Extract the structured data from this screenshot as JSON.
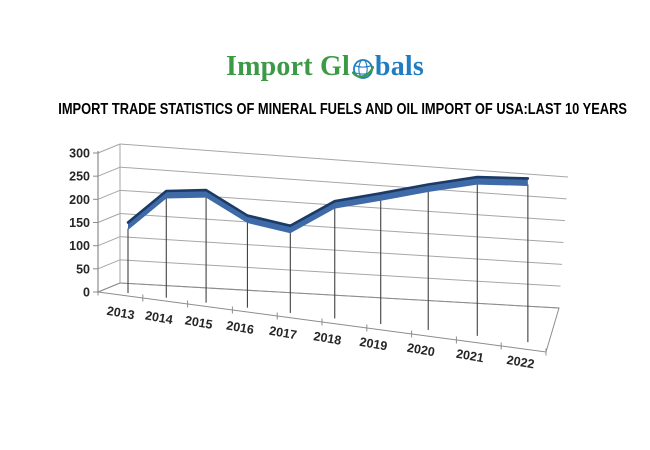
{
  "logo": {
    "text_left": "Import Gl",
    "text_right": "bals",
    "color_green": "#3C9A47",
    "color_blue": "#1F7EC2"
  },
  "heading": {
    "title": "IMPORT TRADE STATISTICS OF MINERAL FUELS AND OIL IMPORT OF USA:LAST 10 YEARS"
  },
  "chart_data": {
    "type": "line",
    "style": "3d-ribbon",
    "title": "",
    "xlabel": "",
    "ylabel": "",
    "categories": [
      "2013",
      "2014",
      "2015",
      "2016",
      "2017",
      "2018",
      "2019",
      "2020",
      "2021",
      "2022"
    ],
    "series": [
      {
        "values": [
          150,
          218,
          220,
          165,
          143,
          196,
          213,
          232,
          248,
          245
        ]
      }
    ],
    "ylim": [
      0,
      300
    ],
    "ytick_step": 50,
    "yticks": [
      0,
      50,
      100,
      150,
      200,
      250,
      300
    ],
    "grid": true,
    "legend": "none",
    "colors": {
      "ribbon_face": "#3E6BA8",
      "ribbon_edge": "#1B3A66",
      "grid_line": "#A6A6A6",
      "axis_line": "#8C8C8C",
      "drop_line": "#404040",
      "tick_label": "#262626"
    }
  }
}
